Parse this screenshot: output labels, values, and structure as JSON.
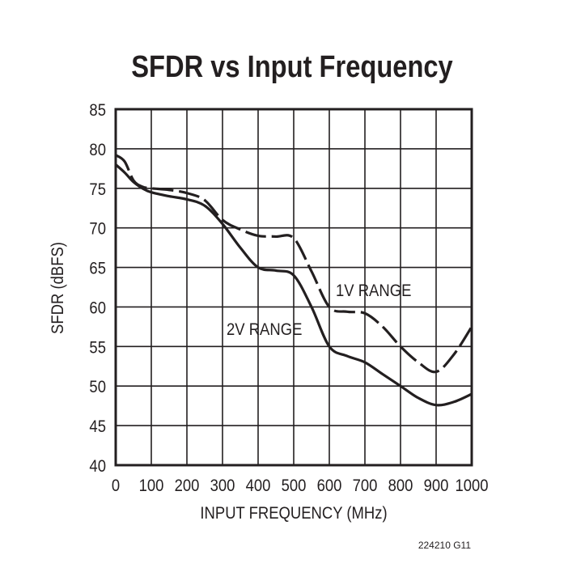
{
  "chart_data": {
    "type": "line",
    "title": "SFDR vs Input Frequency",
    "xlabel": "INPUT FREQUENCY (MHz)",
    "ylabel": "SFDR (dBFS)",
    "xlim": [
      0,
      1000
    ],
    "ylim": [
      40,
      85
    ],
    "xticks": [
      0,
      100,
      200,
      300,
      400,
      500,
      600,
      700,
      800,
      900,
      1000
    ],
    "yticks": [
      40,
      45,
      50,
      55,
      60,
      65,
      70,
      75,
      80,
      85
    ],
    "grid": true,
    "x": [
      0,
      25,
      50,
      75,
      100,
      150,
      200,
      250,
      300,
      350,
      400,
      450,
      500,
      550,
      600,
      650,
      700,
      750,
      800,
      850,
      900,
      950,
      1000
    ],
    "series": [
      {
        "name": "2V RANGE",
        "style": "solid",
        "values": [
          78,
          77,
          75.8,
          75,
          74.5,
          74,
          73.6,
          72.8,
          70.5,
          67.5,
          65,
          64.6,
          64,
          60,
          55,
          53.8,
          53,
          51.5,
          50,
          48.5,
          47.6,
          48,
          49
        ]
      },
      {
        "name": "1V RANGE",
        "style": "dashed",
        "values": [
          79.2,
          78.4,
          76,
          75.2,
          75,
          74.8,
          74.4,
          73.5,
          71,
          69.8,
          69,
          68.9,
          68.7,
          64.5,
          60,
          59.4,
          59.2,
          57.5,
          55,
          53,
          51.8,
          54,
          57.5
        ]
      }
    ],
    "color": "#231f20",
    "footnote": "224210 G11"
  }
}
